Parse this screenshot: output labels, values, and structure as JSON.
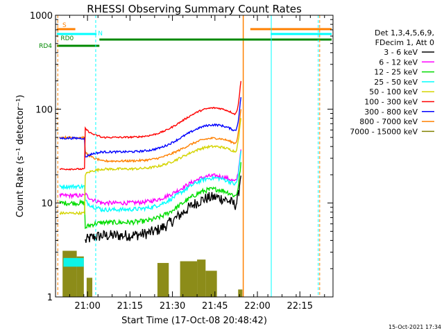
{
  "chart_data": {
    "type": "line",
    "title": "RHESSI Observing Summary Count Rates",
    "xlabel": "Start Time (17-Oct-08 20:48:42)",
    "ylabel": "Count Rate (s⁻¹ detector⁻¹)",
    "yscale": "log",
    "ylim": [
      1,
      1000
    ],
    "xlim_minutes": [
      0,
      98
    ],
    "x_ticks": [
      {
        "label": "21:00",
        "minute": 11.3
      },
      {
        "label": "21:15",
        "minute": 26.3
      },
      {
        "label": "21:30",
        "minute": 41.3
      },
      {
        "label": "21:45",
        "minute": 56.3
      },
      {
        "label": "22:00",
        "minute": 71.3
      },
      {
        "label": "22:15",
        "minute": 86.3
      }
    ],
    "y_ticks": [
      {
        "label": "1",
        "value": 1
      },
      {
        "label": "10",
        "value": 10
      },
      {
        "label": "100",
        "value": 100
      },
      {
        "label": "1000",
        "value": 1000
      }
    ],
    "legend_header": [
      "Det 1,3,4,5,6,9,",
      "FDecim 1, Att 0"
    ],
    "series": [
      {
        "name": "3 - 6 keV",
        "color": "#000000",
        "pre": 0,
        "base": 4.5,
        "peak": 11.5,
        "noise": 0.14
      },
      {
        "name": "6 - 12 keV",
        "color": "#ff00ff",
        "pre": 12,
        "base": 10,
        "peak": 19.5,
        "noise": 0.05
      },
      {
        "name": "12 - 25 keV",
        "color": "#00dd00",
        "pre": 10,
        "base": 6.2,
        "peak": 14,
        "noise": 0.06
      },
      {
        "name": "25 - 50 keV",
        "color": "#00ffff",
        "pre": 15,
        "base": 8.5,
        "peak": 18.5,
        "noise": 0.05
      },
      {
        "name": "50 - 100 keV",
        "color": "#d4d400",
        "pre": 7.8,
        "base": 23,
        "peak": 40,
        "noise": 0.03
      },
      {
        "name": "100 - 300 keV",
        "color": "#ff0000",
        "pre": 23,
        "base": 50,
        "peak": 103,
        "noise": 0.02
      },
      {
        "name": "300 - 800 keV",
        "color": "#0000ff",
        "pre": 49,
        "base": 35,
        "peak": 68,
        "noise": 0.025
      },
      {
        "name": "800 - 7000 keV",
        "color": "#ff8000",
        "pre": 50,
        "base": 28,
        "peak": 49,
        "noise": 0.025
      },
      {
        "name": "7000 - 15000 keV",
        "color": "#808000",
        "pre": 0,
        "base": 0,
        "peak": 0,
        "noise": 0
      }
    ],
    "flag_bars": [
      {
        "label": "S",
        "color": "#ff8000"
      },
      {
        "label": "N",
        "color": "#00ffff"
      },
      {
        "label": "RD0",
        "color": "#008800"
      },
      {
        "label": "RD4",
        "color": "#008800"
      }
    ]
  },
  "footer": {
    "date": "15-Oct-2021 17:34"
  }
}
